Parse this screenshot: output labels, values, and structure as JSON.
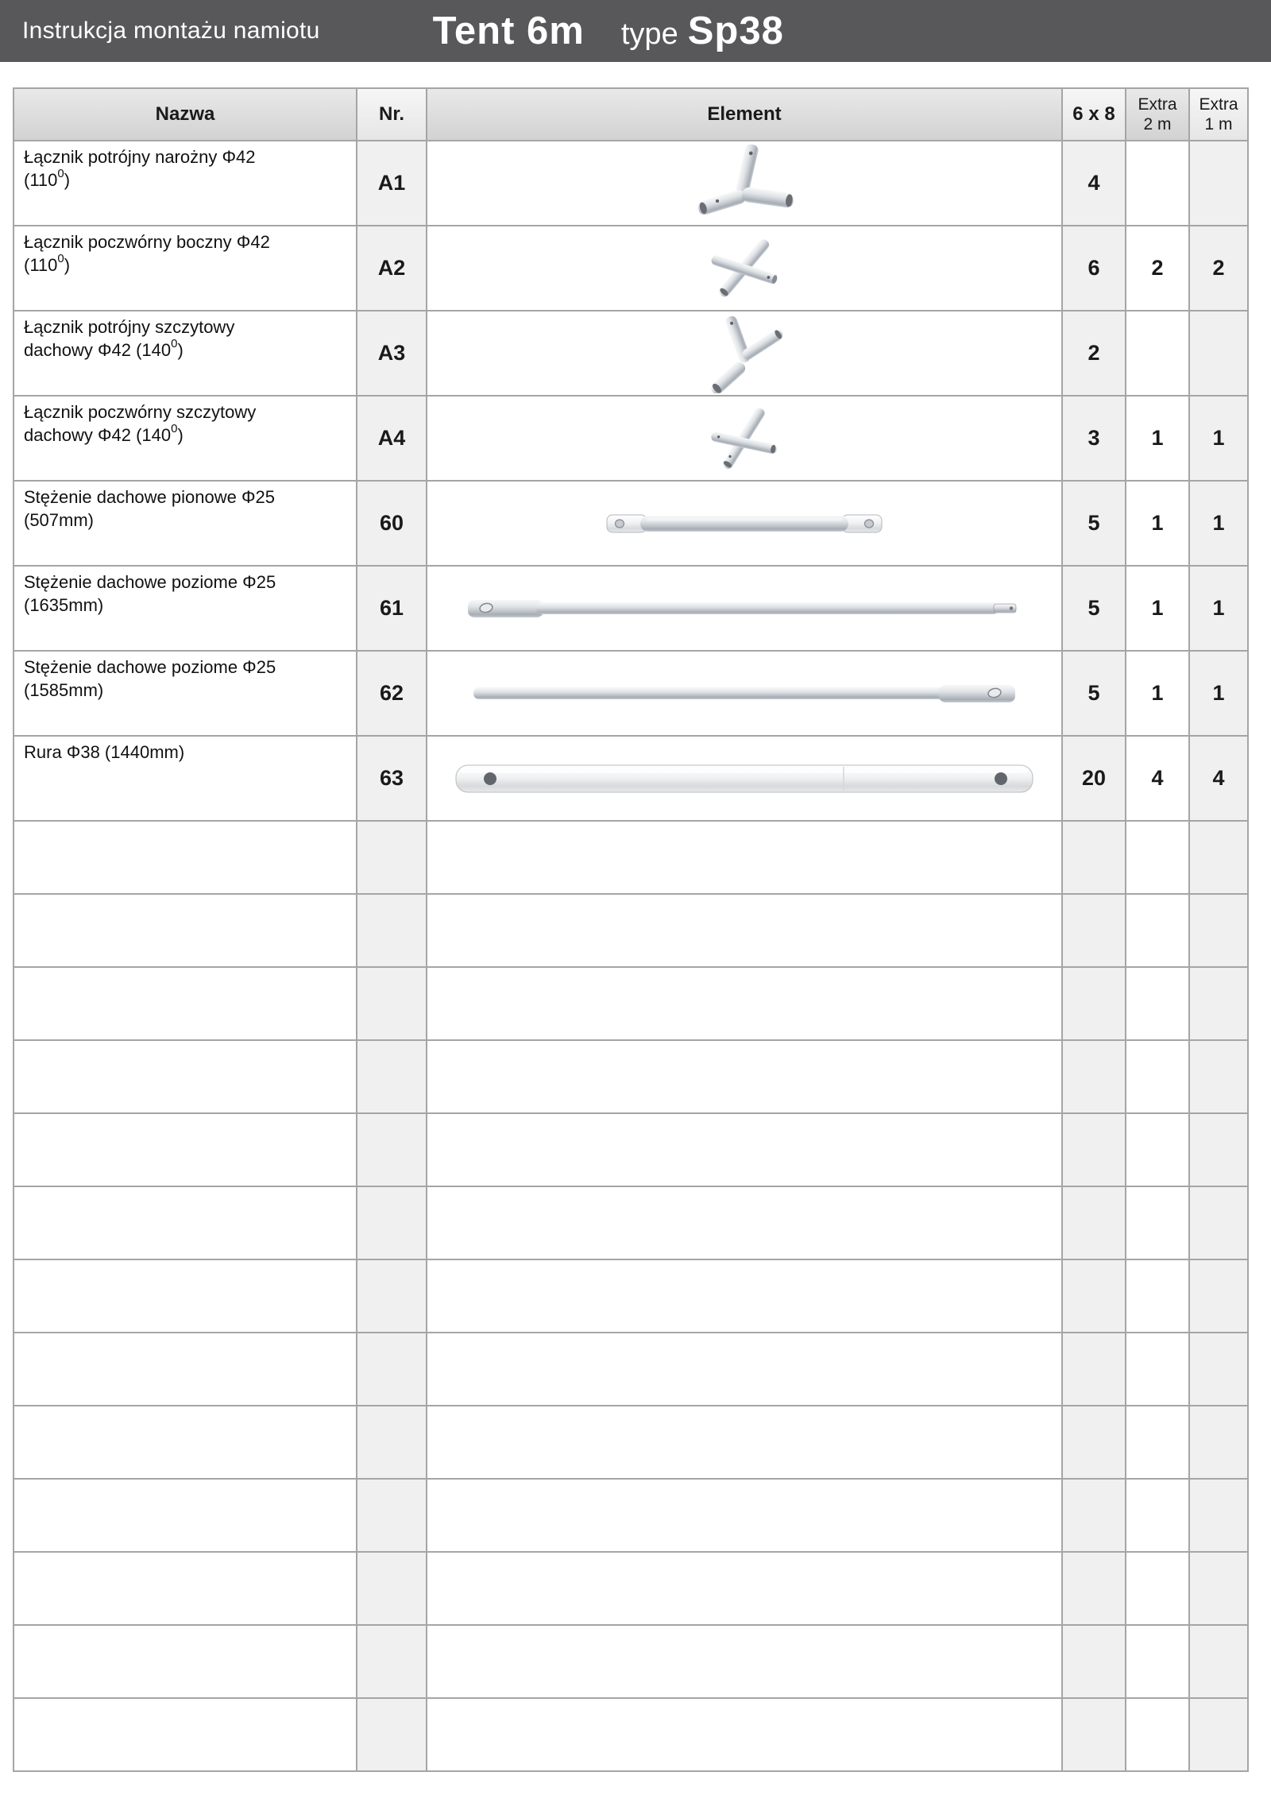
{
  "page": {
    "title_bar": {
      "left": "Instrukcja montażu namiotu",
      "product": "Tent 6m",
      "type_word": "type",
      "type_value": "Sp38"
    }
  },
  "table": {
    "headers": {
      "name": "Nazwa",
      "nr": "Nr.",
      "element": "Element",
      "qty": "6 x 8",
      "extra2_line1": "Extra",
      "extra2_line2": "2 m",
      "extra1_line1": "Extra",
      "extra1_line2": "1 m"
    },
    "rows": [
      {
        "name_pre": "Łącznik potrójny narożny Φ42\n(110",
        "name_sup": "0",
        "name_post": ")",
        "nr": "A1",
        "icon": "connector-3way-corner",
        "qty_6x8": "4",
        "qty_extra_2m": "",
        "qty_extra_1m": ""
      },
      {
        "name_pre": "Łącznik poczwórny boczny Φ42\n(110",
        "name_sup": "0",
        "name_post": ")",
        "nr": "A2",
        "icon": "connector-4way-side",
        "qty_6x8": "6",
        "qty_extra_2m": "2",
        "qty_extra_1m": "2"
      },
      {
        "name_pre": "Łącznik potrójny szczytowy\ndachowy Φ42 (140",
        "name_sup": "0",
        "name_post": ")",
        "nr": "A3",
        "icon": "connector-3way-peak",
        "qty_6x8": "2",
        "qty_extra_2m": "",
        "qty_extra_1m": ""
      },
      {
        "name_pre": "Łącznik poczwórny szczytowy\ndachowy Φ42 (140",
        "name_sup": "0",
        "name_post": ")",
        "nr": "A4",
        "icon": "connector-4way-peak",
        "qty_6x8": "3",
        "qty_extra_2m": "1",
        "qty_extra_1m": "1"
      },
      {
        "name_pre": "Stężenie dachowe pionowe Φ25\n(507mm)",
        "name_sup": "",
        "name_post": "",
        "nr": "60",
        "icon": "roof-brace-vertical",
        "qty_6x8": "5",
        "qty_extra_2m": "1",
        "qty_extra_1m": "1"
      },
      {
        "name_pre": "Stężenie dachowe poziome Φ25\n(1635mm)",
        "name_sup": "",
        "name_post": "",
        "nr": "61",
        "icon": "roof-brace-horizontal-1635",
        "qty_6x8": "5",
        "qty_extra_2m": "1",
        "qty_extra_1m": "1"
      },
      {
        "name_pre": "Stężenie dachowe poziome Φ25\n(1585mm)",
        "name_sup": "",
        "name_post": "",
        "nr": "62",
        "icon": "roof-brace-horizontal-1585",
        "qty_6x8": "5",
        "qty_extra_2m": "1",
        "qty_extra_1m": "1"
      },
      {
        "name_pre": "Rura Φ38 (1440mm)",
        "name_sup": "",
        "name_post": "",
        "nr": "63",
        "icon": "tube-38",
        "qty_6x8": "20",
        "qty_extra_2m": "4",
        "qty_extra_1m": "4"
      }
    ],
    "empty_rows": 13
  },
  "colors": {
    "title_bar_bg": "#58585a",
    "header_cell_dark": "#d9d9d9",
    "header_cell_light": "#ececec",
    "shaded_column": "#f0f0f0",
    "grid_line": "#a5a5a5"
  }
}
